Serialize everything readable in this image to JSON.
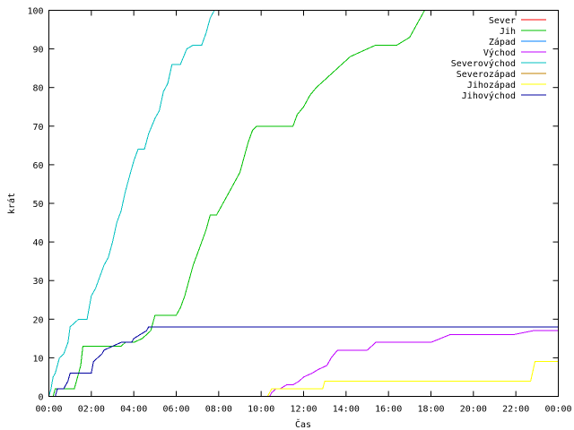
{
  "chart_data": {
    "type": "line",
    "title": "",
    "xlabel": "Čas",
    "ylabel": "krát",
    "xlim": [
      0,
      24
    ],
    "ylim": [
      0,
      100
    ],
    "grid": false,
    "legend_position": "top-right",
    "x_ticks": [
      {
        "x": 0,
        "label": "00:00"
      },
      {
        "x": 2,
        "label": "02:00"
      },
      {
        "x": 4,
        "label": "04:00"
      },
      {
        "x": 6,
        "label": "06:00"
      },
      {
        "x": 8,
        "label": "08:00"
      },
      {
        "x": 10,
        "label": "10:00"
      },
      {
        "x": 12,
        "label": "12:00"
      },
      {
        "x": 14,
        "label": "14:00"
      },
      {
        "x": 16,
        "label": "16:00"
      },
      {
        "x": 18,
        "label": "18:00"
      },
      {
        "x": 20,
        "label": "20:00"
      },
      {
        "x": 22,
        "label": "22:00"
      },
      {
        "x": 24,
        "label": "00:00"
      }
    ],
    "y_ticks": [
      {
        "y": 0,
        "label": "0"
      },
      {
        "y": 10,
        "label": "10"
      },
      {
        "y": 20,
        "label": "20"
      },
      {
        "y": 30,
        "label": "30"
      },
      {
        "y": 40,
        "label": "40"
      },
      {
        "y": 50,
        "label": "50"
      },
      {
        "y": 60,
        "label": "60"
      },
      {
        "y": 70,
        "label": "70"
      },
      {
        "y": 80,
        "label": "80"
      },
      {
        "y": 90,
        "label": "90"
      },
      {
        "y": 100,
        "label": "100"
      }
    ],
    "series": [
      {
        "name": "Sever",
        "color": "#ff0000",
        "x": [],
        "y": []
      },
      {
        "name": "Jih",
        "color": "#00c000",
        "x": [
          0.2,
          0.3,
          0.5,
          1.2,
          1.3,
          1.5,
          1.6,
          3.2,
          3.4,
          3.6,
          4.0,
          4.4,
          4.8,
          5.0,
          5.5,
          6.0,
          6.2,
          6.4,
          6.6,
          6.8,
          7.0,
          7.2,
          7.4,
          7.6,
          7.9,
          8.2,
          8.5,
          8.8,
          9.0,
          9.2,
          9.4,
          9.6,
          9.8,
          10.0,
          11.5,
          11.7,
          12.0,
          12.3,
          12.6,
          13.0,
          13.4,
          13.8,
          14.2,
          14.6,
          15.0,
          15.4,
          15.8,
          16.4,
          17.0,
          17.3,
          17.5,
          17.7,
          17.9
        ],
        "y": [
          0,
          2,
          2,
          2,
          4,
          8,
          13,
          13,
          13,
          14,
          14,
          15,
          17,
          21,
          21,
          21,
          23,
          26,
          30,
          34,
          37,
          40,
          43,
          47,
          47,
          50,
          53,
          56,
          58,
          62,
          66,
          69,
          70,
          70,
          70,
          73,
          75,
          78,
          80,
          82,
          84,
          86,
          88,
          89,
          90,
          91,
          91,
          91,
          93,
          96,
          98,
          100,
          100
        ]
      },
      {
        "name": "Západ",
        "color": "#0080ff",
        "x": [],
        "y": []
      },
      {
        "name": "Východ",
        "color": "#c000ff",
        "x": [
          10.4,
          10.5,
          10.7,
          10.9,
          11.2,
          11.5,
          11.8,
          12.0,
          12.4,
          12.7,
          13.1,
          13.3,
          13.6,
          14.0,
          15.0,
          15.4,
          16.0,
          17.0,
          18.0,
          18.9,
          19.5,
          20.5,
          21.0,
          21.9,
          22.8,
          23.2,
          24.0
        ],
        "y": [
          0,
          1,
          2,
          2,
          3,
          3,
          4,
          5,
          6,
          7,
          8,
          10,
          12,
          12,
          12,
          14,
          14,
          14,
          14,
          16,
          16,
          16,
          16,
          16,
          17,
          17,
          17
        ]
      },
      {
        "name": "Severovýchod",
        "color": "#00c0c0",
        "x": [
          0.0,
          0.1,
          0.2,
          0.3,
          0.5,
          0.7,
          0.9,
          1.0,
          1.2,
          1.4,
          1.8,
          2.0,
          2.2,
          2.4,
          2.6,
          2.8,
          3.0,
          3.2,
          3.4,
          3.6,
          3.8,
          4.0,
          4.2,
          4.5,
          4.7,
          5.0,
          5.2,
          5.4,
          5.6,
          5.8,
          6.0,
          6.2,
          6.5,
          6.8,
          7.2,
          7.4,
          7.6,
          7.8
        ],
        "y": [
          0,
          2,
          5,
          6,
          10,
          11,
          14,
          18,
          19,
          20,
          20,
          26,
          28,
          31,
          34,
          36,
          40,
          45,
          48,
          53,
          57,
          61,
          64,
          64,
          68,
          72,
          74,
          79,
          81,
          86,
          86,
          86,
          90,
          91,
          91,
          94,
          98,
          100
        ]
      },
      {
        "name": "Severozápad",
        "color": "#c08000",
        "x": [],
        "y": []
      },
      {
        "name": "Jihozápad",
        "color": "#ffff00",
        "x": [
          10.3,
          10.5,
          11.0,
          12.0,
          12.9,
          13.0,
          14.0,
          16.0,
          18.0,
          20.0,
          21.0,
          22.0,
          22.7,
          22.9,
          24.0
        ],
        "y": [
          0,
          2,
          2,
          2,
          2,
          4,
          4,
          4,
          4,
          4,
          4,
          4,
          4,
          9,
          9
        ]
      },
      {
        "name": "Jihovýchod",
        "color": "#0000a0",
        "x": [
          0.3,
          0.4,
          0.7,
          0.9,
          1.0,
          2.0,
          2.1,
          2.3,
          2.5,
          2.6,
          3.4,
          3.6,
          3.9,
          4.0,
          4.3,
          4.6,
          4.7,
          6.0,
          8.0,
          12.0,
          16.0,
          20.0,
          24.0
        ],
        "y": [
          0,
          2,
          2,
          4,
          6,
          6,
          9,
          10,
          11,
          12,
          14,
          14,
          14,
          15,
          16,
          17,
          18,
          18,
          18,
          18,
          18,
          18,
          18
        ]
      }
    ]
  }
}
